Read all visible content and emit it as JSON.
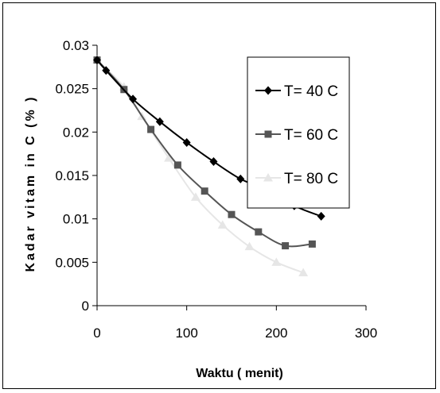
{
  "chart_data": {
    "type": "line",
    "xlabel": "Waktu ( menit)",
    "ylabel": "Kadar vitam in C (% )",
    "xlim": [
      0,
      300
    ],
    "ylim": [
      0,
      0.03
    ],
    "x_ticks": [
      "0",
      "100",
      "200",
      "300"
    ],
    "y_ticks": [
      "0",
      "0.005",
      "0.01",
      "0.015",
      "0.02",
      "0.025",
      "0.03"
    ],
    "legend_position": "top-right",
    "grid": false,
    "series": [
      {
        "name": "T= 40 C",
        "color": "#000000",
        "marker": "diamond",
        "x": [
          0,
          10,
          40,
          70,
          100,
          130,
          160,
          190,
          220,
          250
        ],
        "y": [
          0.0283,
          0.0271,
          0.0238,
          0.0212,
          0.0188,
          0.0166,
          0.0146,
          0.0133,
          0.0115,
          0.0103
        ]
      },
      {
        "name": "T= 60 C",
        "color": "#555555",
        "marker": "square",
        "x": [
          0,
          30,
          60,
          90,
          120,
          150,
          180,
          210,
          240
        ],
        "y": [
          0.0283,
          0.0249,
          0.0203,
          0.0162,
          0.0132,
          0.0105,
          0.0085,
          0.0069,
          0.0071
        ]
      },
      {
        "name": "T= 80 C",
        "color": "#e6e6e6",
        "marker": "triangle",
        "x": [
          0,
          30,
          50,
          80,
          110,
          140,
          170,
          200,
          230
        ],
        "y": [
          0.0283,
          0.0252,
          0.0218,
          0.017,
          0.0125,
          0.0093,
          0.0068,
          0.005,
          0.0038
        ]
      }
    ]
  }
}
